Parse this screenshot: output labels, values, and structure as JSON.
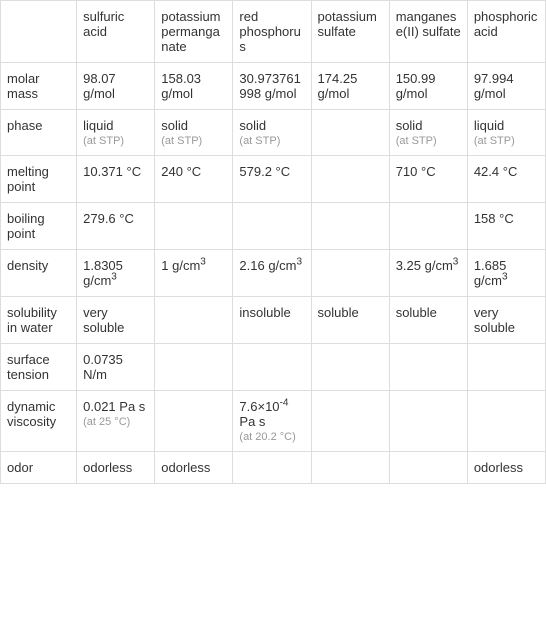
{
  "columns": [
    "sulfuric acid",
    "potassium permanganate",
    "red phosphorus",
    "potassium sulfate",
    "manganese(II) sulfate",
    "phosphoric acid"
  ],
  "rows": [
    {
      "label": "molar mass",
      "cells": [
        {
          "main": "98.07 g/mol"
        },
        {
          "main": "158.03 g/mol"
        },
        {
          "main": "30.973761998 g/mol"
        },
        {
          "main": "174.25 g/mol"
        },
        {
          "main": "150.99 g/mol"
        },
        {
          "main": "97.994 g/mol"
        }
      ]
    },
    {
      "label": "phase",
      "cells": [
        {
          "main": "liquid",
          "sub": "(at STP)"
        },
        {
          "main": "solid",
          "sub": "(at STP)"
        },
        {
          "main": "solid",
          "sub": "(at STP)"
        },
        {
          "main": ""
        },
        {
          "main": "solid",
          "sub": "(at STP)"
        },
        {
          "main": "liquid",
          "sub": "(at STP)"
        }
      ]
    },
    {
      "label": "melting point",
      "cells": [
        {
          "main": "10.371 °C"
        },
        {
          "main": "240 °C"
        },
        {
          "main": "579.2 °C"
        },
        {
          "main": ""
        },
        {
          "main": "710 °C"
        },
        {
          "main": "42.4 °C"
        }
      ]
    },
    {
      "label": "boiling point",
      "cells": [
        {
          "main": "279.6 °C"
        },
        {
          "main": ""
        },
        {
          "main": ""
        },
        {
          "main": ""
        },
        {
          "main": ""
        },
        {
          "main": "158 °C"
        }
      ]
    },
    {
      "label": "density",
      "cells": [
        {
          "main": "1.8305 g/cm",
          "super": "3"
        },
        {
          "main": "1 g/cm",
          "super": "3"
        },
        {
          "main": "2.16 g/cm",
          "super": "3"
        },
        {
          "main": ""
        },
        {
          "main": "3.25 g/cm",
          "super": "3"
        },
        {
          "main": "1.685 g/cm",
          "super": "3"
        }
      ]
    },
    {
      "label": "solubility in water",
      "cells": [
        {
          "main": "very soluble"
        },
        {
          "main": ""
        },
        {
          "main": "insoluble"
        },
        {
          "main": "soluble"
        },
        {
          "main": "soluble"
        },
        {
          "main": "very soluble"
        }
      ]
    },
    {
      "label": "surface tension",
      "cells": [
        {
          "main": "0.0735 N/m"
        },
        {
          "main": ""
        },
        {
          "main": ""
        },
        {
          "main": ""
        },
        {
          "main": ""
        },
        {
          "main": ""
        }
      ]
    },
    {
      "label": "dynamic viscosity",
      "cells": [
        {
          "main": "0.021 Pa s",
          "sub": "(at 25 °C)"
        },
        {
          "main": ""
        },
        {
          "main": "7.6×10",
          "superneg": "-4",
          "post": " Pa s ",
          "sub": "(at 20.2 °C)"
        },
        {
          "main": ""
        },
        {
          "main": ""
        },
        {
          "main": ""
        }
      ]
    },
    {
      "label": "odor",
      "cells": [
        {
          "main": "odorless"
        },
        {
          "main": "odorless"
        },
        {
          "main": ""
        },
        {
          "main": ""
        },
        {
          "main": ""
        },
        {
          "main": "odorless"
        }
      ]
    }
  ],
  "style": {
    "border_color": "#dddddd",
    "text_color": "#333333",
    "subnote_color": "#999999",
    "background_color": "#ffffff",
    "font_size_main": 13,
    "font_size_sub": 11
  }
}
